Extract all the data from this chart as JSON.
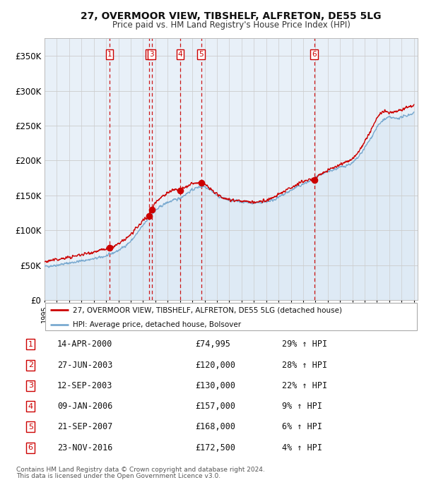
{
  "title1": "27, OVERMOOR VIEW, TIBSHELF, ALFRETON, DE55 5LG",
  "title2": "Price paid vs. HM Land Registry's House Price Index (HPI)",
  "legend_label1": "27, OVERMOOR VIEW, TIBSHELF, ALFRETON, DE55 5LG (detached house)",
  "legend_label2": "HPI: Average price, detached house, Bolsover",
  "footer1": "Contains HM Land Registry data © Crown copyright and database right 2024.",
  "footer2": "This data is licensed under the Open Government Licence v3.0.",
  "ylim": [
    0,
    375000
  ],
  "yticks": [
    0,
    50000,
    100000,
    150000,
    200000,
    250000,
    300000,
    350000
  ],
  "ytick_labels": [
    "£0",
    "£50K",
    "£100K",
    "£150K",
    "£200K",
    "£250K",
    "£300K",
    "£350K"
  ],
  "sale_color": "#cc0000",
  "hpi_color": "#7aaad0",
  "hpi_fill_color": "#deeaf5",
  "bg_color": "#e8f0f8",
  "transactions": [
    {
      "num": 1,
      "date_num": 2000.29,
      "price": 74995
    },
    {
      "num": 2,
      "date_num": 2003.49,
      "price": 120000
    },
    {
      "num": 3,
      "date_num": 2003.7,
      "price": 130000
    },
    {
      "num": 4,
      "date_num": 2006.03,
      "price": 157000
    },
    {
      "num": 5,
      "date_num": 2007.72,
      "price": 168000
    },
    {
      "num": 6,
      "date_num": 2016.9,
      "price": 172500
    }
  ],
  "table_rows": [
    {
      "num": 1,
      "date": "14-APR-2000",
      "price": "£74,995",
      "pct": "29%",
      "arrow": "↑"
    },
    {
      "num": 2,
      "date": "27-JUN-2003",
      "price": "£120,000",
      "pct": "28%",
      "arrow": "↑"
    },
    {
      "num": 3,
      "date": "12-SEP-2003",
      "price": "£130,000",
      "pct": "22%",
      "arrow": "↑"
    },
    {
      "num": 4,
      "date": "09-JAN-2006",
      "price": "£157,000",
      "pct": "9%",
      "arrow": "↑"
    },
    {
      "num": 5,
      "date": "21-SEP-2007",
      "price": "£168,000",
      "pct": "6%",
      "arrow": "↑"
    },
    {
      "num": 6,
      "date": "23-NOV-2016",
      "price": "£172,500",
      "pct": "4%",
      "arrow": "↑"
    }
  ],
  "hpi_nodes_t": [
    1995.0,
    1995.5,
    1996.0,
    1996.5,
    1997.0,
    1997.5,
    1998.0,
    1998.5,
    1999.0,
    1999.5,
    2000.0,
    2000.5,
    2001.0,
    2001.5,
    2002.0,
    2002.5,
    2003.0,
    2003.5,
    2004.0,
    2004.5,
    2005.0,
    2005.5,
    2006.0,
    2006.5,
    2007.0,
    2007.5,
    2008.0,
    2008.5,
    2009.0,
    2009.5,
    2010.0,
    2010.5,
    2011.0,
    2011.5,
    2012.0,
    2012.5,
    2013.0,
    2013.5,
    2014.0,
    2014.5,
    2015.0,
    2015.5,
    2016.0,
    2016.5,
    2017.0,
    2017.5,
    2018.0,
    2018.5,
    2019.0,
    2019.5,
    2020.0,
    2020.5,
    2021.0,
    2021.5,
    2022.0,
    2022.5,
    2023.0,
    2023.5,
    2024.0,
    2024.5,
    2025.0
  ],
  "hpi_nodes_v": [
    48000,
    49000,
    50000,
    51500,
    53000,
    54500,
    56000,
    57500,
    59000,
    61000,
    63000,
    67000,
    71000,
    77000,
    84000,
    95000,
    107000,
    118000,
    128000,
    135000,
    140000,
    143000,
    146000,
    152000,
    158000,
    162000,
    163000,
    158000,
    150000,
    146000,
    143000,
    142000,
    141000,
    140000,
    139000,
    140000,
    141000,
    143000,
    147000,
    152000,
    157000,
    162000,
    166000,
    170000,
    175000,
    180000,
    184000,
    187000,
    190000,
    193000,
    196000,
    205000,
    218000,
    232000,
    248000,
    258000,
    262000,
    260000,
    262000,
    265000,
    268000
  ],
  "pp_nodes_t": [
    1995.0,
    1995.5,
    1996.0,
    1996.5,
    1997.0,
    1997.5,
    1998.0,
    1998.5,
    1999.0,
    1999.5,
    2000.0,
    2000.29,
    2000.5,
    2001.0,
    2001.5,
    2002.0,
    2002.5,
    2003.0,
    2003.49,
    2003.7,
    2004.0,
    2004.5,
    2005.0,
    2005.5,
    2006.03,
    2006.5,
    2007.0,
    2007.72,
    2008.0,
    2008.5,
    2009.0,
    2009.5,
    2010.0,
    2010.5,
    2011.0,
    2011.5,
    2012.0,
    2012.5,
    2013.0,
    2013.5,
    2014.0,
    2014.5,
    2015.0,
    2015.5,
    2016.0,
    2016.5,
    2016.9,
    2017.0,
    2017.5,
    2018.0,
    2018.5,
    2019.0,
    2019.5,
    2020.0,
    2020.5,
    2021.0,
    2021.5,
    2022.0,
    2022.5,
    2023.0,
    2023.5,
    2024.0,
    2024.5,
    2025.0
  ],
  "pp_nodes_v": [
    55000,
    56500,
    58000,
    59500,
    61000,
    63000,
    65000,
    67000,
    69000,
    71000,
    73000,
    74995,
    76000,
    80000,
    86000,
    94000,
    103000,
    114000,
    120000,
    130000,
    140000,
    148000,
    154000,
    158000,
    157000,
    162000,
    167000,
    168000,
    166000,
    159000,
    151000,
    147000,
    144000,
    143000,
    142000,
    141000,
    140000,
    141000,
    143000,
    146000,
    151000,
    156000,
    161000,
    166000,
    170000,
    173000,
    172500,
    176000,
    181000,
    186000,
    190000,
    194000,
    198000,
    202000,
    212000,
    227000,
    243000,
    262000,
    270000,
    268000,
    270000,
    273000,
    277000,
    280000
  ]
}
